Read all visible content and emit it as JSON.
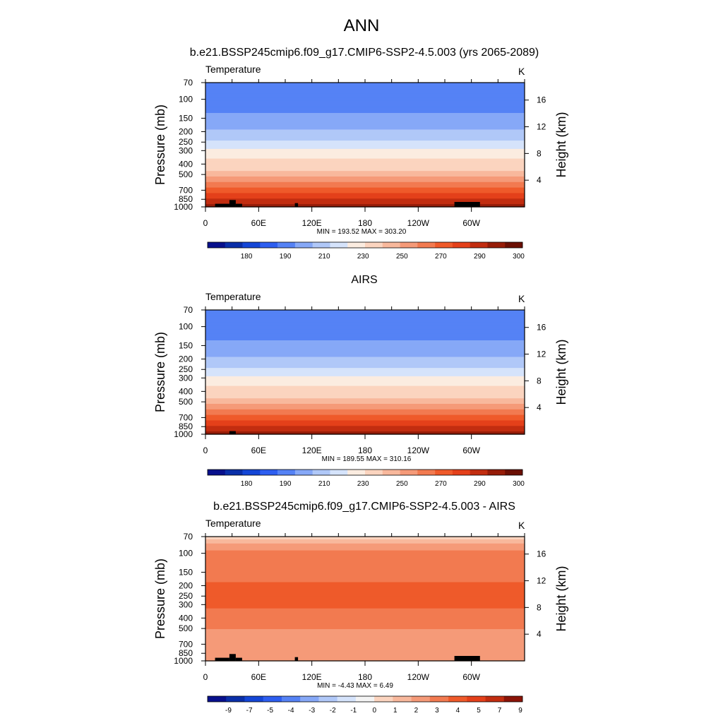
{
  "page": {
    "title": "ANN"
  },
  "colors": {
    "temp_scale": [
      "#08108c",
      "#0a2fa8",
      "#1446d6",
      "#2d5ef0",
      "#5582f5",
      "#86a8f7",
      "#b0c8f8",
      "#d5e3fb",
      "#fbece0",
      "#fbd4bf",
      "#f8b89c",
      "#f59a78",
      "#f27a50",
      "#ef5a2a",
      "#e4401a",
      "#c22d10",
      "#961c08",
      "#6b0f04"
    ],
    "diff_scale": [
      "#08108c",
      "#0a2fa8",
      "#1446d6",
      "#2d5ef0",
      "#5582f5",
      "#86a8f7",
      "#b0c8f8",
      "#d5e3fb",
      "#f4f4f4",
      "#fbd4bf",
      "#f8b89c",
      "#f59a78",
      "#f27a50",
      "#ef5a2a",
      "#e4401a",
      "#c22d10",
      "#8b1408"
    ],
    "terrain": "#000000"
  },
  "chart_data": [
    {
      "type": "heatmap",
      "title": "b.e21.BSSP245cmip6.f09_g17.CMIP6-SSP2-4.5.003 (yrs 2065-2089)",
      "variable": "Temperature",
      "units": "K",
      "ylabel": "Pressure (mb)",
      "ylabel_right": "Height (km)",
      "y_ticks": [
        "70",
        "100",
        "150",
        "200",
        "250",
        "300",
        "400",
        "500",
        "700",
        "850",
        "1000"
      ],
      "y_right_ticks": [
        "16",
        "12",
        "8",
        "4"
      ],
      "x_ticks": [
        "0",
        "60E",
        "120E",
        "180",
        "120W",
        "60W"
      ],
      "stats": "MIN = 193.52  MAX = 303.20",
      "colorbar_labels": [
        "180",
        "190",
        "210",
        "230",
        "250",
        "270",
        "290",
        "300"
      ],
      "profile_by_pressure": [
        [
          70,
          200
        ],
        [
          100,
          205
        ],
        [
          150,
          212
        ],
        [
          200,
          222
        ],
        [
          250,
          232
        ],
        [
          300,
          242
        ],
        [
          400,
          255
        ],
        [
          500,
          263
        ],
        [
          700,
          277
        ],
        [
          850,
          285
        ],
        [
          1000,
          293
        ]
      ]
    },
    {
      "type": "heatmap",
      "title": "AIRS",
      "variable": "Temperature",
      "units": "K",
      "ylabel": "Pressure (mb)",
      "ylabel_right": "Height (km)",
      "y_ticks": [
        "70",
        "100",
        "150",
        "200",
        "250",
        "300",
        "400",
        "500",
        "700",
        "850",
        "1000"
      ],
      "y_right_ticks": [
        "16",
        "12",
        "8",
        "4"
      ],
      "x_ticks": [
        "0",
        "60E",
        "120E",
        "180",
        "120W",
        "60W"
      ],
      "stats": "MIN = 189.55  MAX = 310.16",
      "colorbar_labels": [
        "180",
        "190",
        "210",
        "230",
        "250",
        "270",
        "290",
        "300"
      ],
      "profile_by_pressure": [
        [
          70,
          200
        ],
        [
          100,
          204
        ],
        [
          150,
          212
        ],
        [
          200,
          222
        ],
        [
          250,
          232
        ],
        [
          300,
          242
        ],
        [
          400,
          255
        ],
        [
          500,
          263
        ],
        [
          700,
          277
        ],
        [
          850,
          285
        ],
        [
          1000,
          292
        ]
      ]
    },
    {
      "type": "heatmap",
      "title": "b.e21.BSSP245cmip6.f09_g17.CMIP6-SSP2-4.5.003 - AIRS",
      "variable": "Temperature",
      "units": "K",
      "ylabel": "Pressure (mb)",
      "ylabel_right": "Height (km)",
      "y_ticks": [
        "70",
        "100",
        "150",
        "200",
        "250",
        "300",
        "400",
        "500",
        "700",
        "850",
        "1000"
      ],
      "y_right_ticks": [
        "16",
        "12",
        "8",
        "4"
      ],
      "x_ticks": [
        "0",
        "60E",
        "120E",
        "180",
        "120W",
        "60W"
      ],
      "stats": "MIN = -4.43  MAX =  6.49",
      "colorbar_labels": [
        "-9",
        "-7",
        "-5",
        "-4",
        "-3",
        "-2",
        "-1",
        "0",
        "1",
        "2",
        "3",
        "4",
        "5",
        "7",
        "9"
      ],
      "profile_by_pressure": [
        [
          70,
          1.5
        ],
        [
          85,
          3.5
        ],
        [
          100,
          4.2
        ],
        [
          150,
          4.5
        ],
        [
          200,
          5.2
        ],
        [
          250,
          5.4
        ],
        [
          300,
          5.2
        ],
        [
          400,
          4.6
        ],
        [
          500,
          4.0
        ],
        [
          700,
          3.6
        ],
        [
          850,
          3.4
        ],
        [
          1000,
          3.2
        ]
      ]
    }
  ]
}
